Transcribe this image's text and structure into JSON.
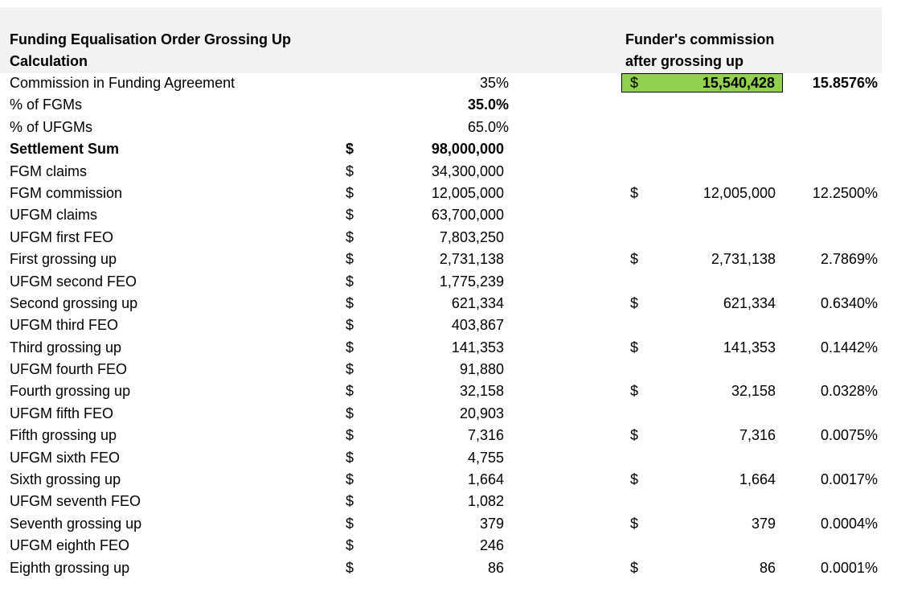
{
  "header": {
    "title_line1": "Funding Equalisation Order Grossing Up",
    "title_line2": "Calculation",
    "right_line1": "Funder's commission",
    "right_line2": "after grossing up"
  },
  "commission": {
    "label": "Commission in Funding Agreement",
    "value": "35%",
    "currency": "$",
    "total": "15,540,428",
    "total_pct": "15.8576%"
  },
  "fgm_pct": {
    "label": "% of FGMs",
    "value": "35.0%"
  },
  "ufgm_pct": {
    "label": "% of UFGMs",
    "value": "65.0%"
  },
  "rows": [
    {
      "label": "Settlement Sum",
      "currency": "$",
      "value": "98,000,000",
      "bold": true
    },
    {
      "label": "FGM claims",
      "currency": "$",
      "value": "34,300,000"
    },
    {
      "label": "FGM commission",
      "currency": "$",
      "value": "12,005,000",
      "r_currency": "$",
      "r_value": "12,005,000",
      "r_pct": "12.2500%"
    },
    {
      "label": "UFGM claims",
      "currency": "$",
      "value": "63,700,000"
    },
    {
      "label": "UFGM first FEO",
      "currency": "$",
      "value": "7,803,250"
    },
    {
      "label": "First grossing up",
      "currency": "$",
      "value": "2,731,138",
      "r_currency": "$",
      "r_value": "2,731,138",
      "r_pct": "2.7869%"
    },
    {
      "label": "UFGM second FEO",
      "currency": "$",
      "value": "1,775,239"
    },
    {
      "label": "Second grossing up",
      "currency": "$",
      "value": "621,334",
      "r_currency": "$",
      "r_value": "621,334",
      "r_pct": "0.6340%"
    },
    {
      "label": "UFGM third FEO",
      "currency": "$",
      "value": "403,867"
    },
    {
      "label": "Third grossing up",
      "currency": "$",
      "value": "141,353",
      "r_currency": "$",
      "r_value": "141,353",
      "r_pct": "0.1442%"
    },
    {
      "label": "UFGM fourth FEO",
      "currency": "$",
      "value": "91,880"
    },
    {
      "label": "Fourth grossing up",
      "currency": "$",
      "value": "32,158",
      "r_currency": "$",
      "r_value": "32,158",
      "r_pct": "0.0328%"
    },
    {
      "label": "UFGM fifth FEO",
      "currency": "$",
      "value": "20,903"
    },
    {
      "label": "Fifth grossing up",
      "currency": "$",
      "value": "7,316",
      "r_currency": "$",
      "r_value": "7,316",
      "r_pct": "0.0075%"
    },
    {
      "label": "UFGM sixth FEO",
      "currency": "$",
      "value": "4,755"
    },
    {
      "label": "Sixth grossing up",
      "currency": "$",
      "value": "1,664",
      "r_currency": "$",
      "r_value": "1,664",
      "r_pct": "0.0017%"
    },
    {
      "label": "UFGM seventh FEO",
      "currency": "$",
      "value": "1,082"
    },
    {
      "label": "Seventh grossing up",
      "currency": "$",
      "value": "379",
      "r_currency": "$",
      "r_value": "379",
      "r_pct": "0.0004%"
    },
    {
      "label": "UFGM eighth FEO",
      "currency": "$",
      "value": "246"
    },
    {
      "label": "Eighth grossing up",
      "currency": "$",
      "value": "86",
      "r_currency": "$",
      "r_value": "86",
      "r_pct": "0.0001%"
    }
  ],
  "colors": {
    "highlight": "#92d050",
    "header_bg": "#f2f2f2"
  }
}
